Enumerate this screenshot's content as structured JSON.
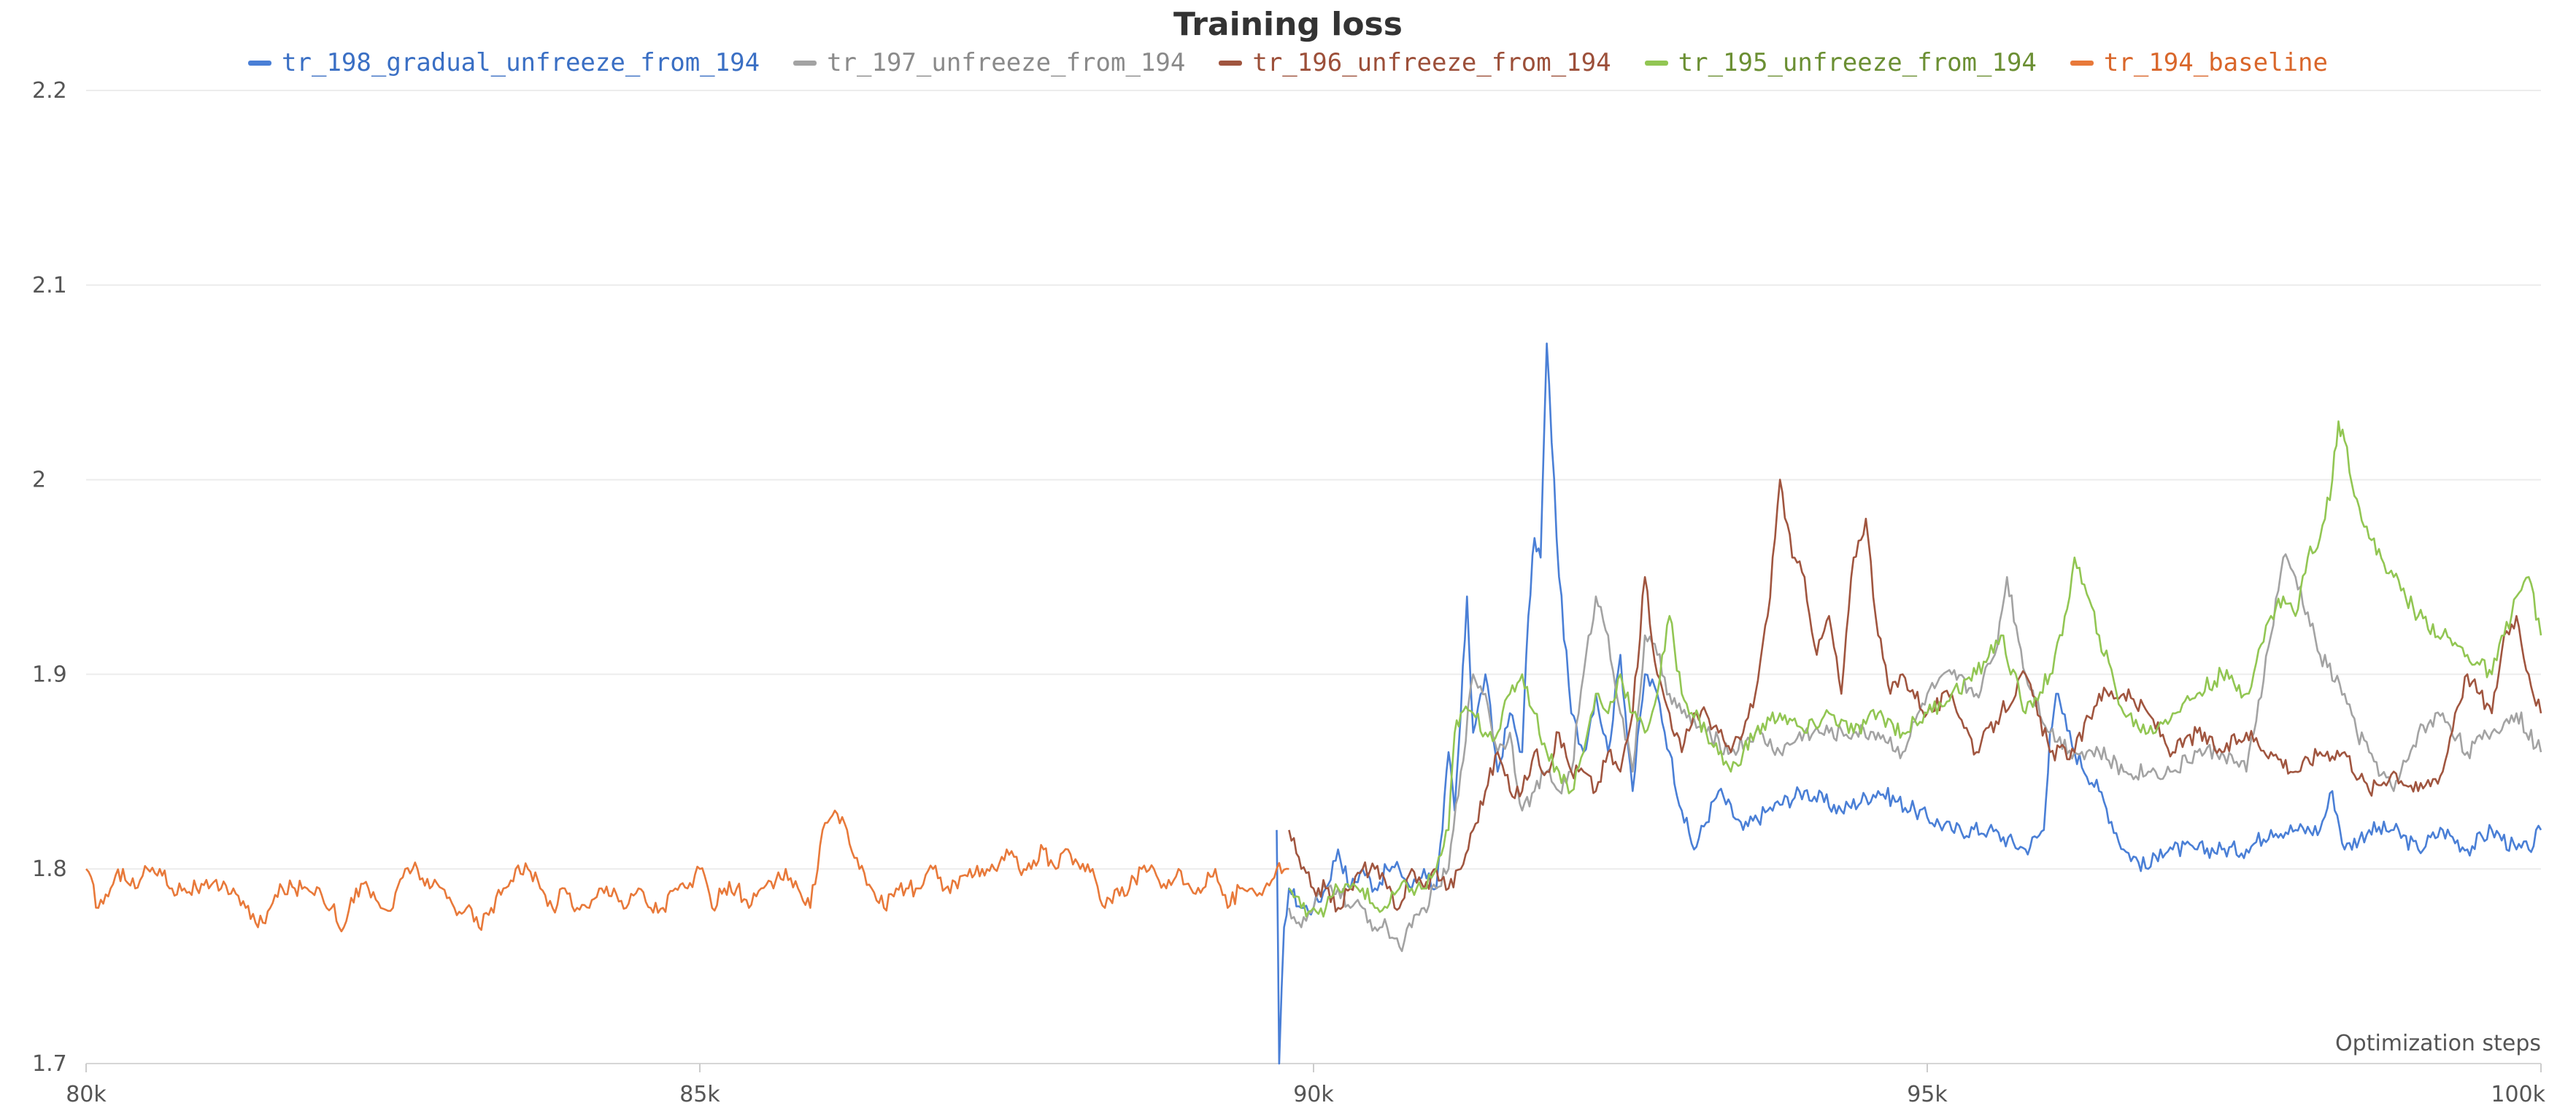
{
  "chart_data": {
    "type": "line",
    "title": "Training loss",
    "xlabel": "Optimization steps",
    "ylabel": "",
    "xlim": [
      80000,
      100000
    ],
    "ylim": [
      1.7,
      2.2
    ],
    "x_ticks": [
      80000,
      85000,
      90000,
      95000,
      100000
    ],
    "x_tick_labels": [
      "80k",
      "85k",
      "90k",
      "95k",
      "100k"
    ],
    "y_ticks": [
      1.7,
      1.8,
      1.9,
      2.0,
      2.1,
      2.2
    ],
    "y_tick_labels": [
      "1.7",
      "1.8",
      "1.9",
      "2",
      "2.1",
      "2.2"
    ],
    "grid": true,
    "legend_position": "top",
    "series": [
      {
        "name": "tr_198_gradual_unfreeze_from_194",
        "color": "#4a7fd6",
        "label_color": "#3a6fc4",
        "x": [
          89700,
          89720,
          89760,
          89800,
          89900,
          90000,
          90100,
          90200,
          90300,
          90400,
          90500,
          90600,
          90700,
          90800,
          90900,
          91000,
          91050,
          91100,
          91150,
          91200,
          91250,
          91300,
          91400,
          91500,
          91600,
          91700,
          91750,
          91800,
          91850,
          91900,
          92000,
          92100,
          92200,
          92300,
          92400,
          92500,
          92600,
          92700,
          92800,
          92900,
          93000,
          93100,
          93300,
          93500,
          93700,
          94000,
          94300,
          94600,
          94900,
          95200,
          95500,
          95800,
          95950,
          96000,
          96050,
          96100,
          96200,
          96400,
          96600,
          96800,
          96900,
          97000,
          97200,
          97400,
          97600,
          97800,
          98000,
          98200,
          98300,
          98400,
          98600,
          98800,
          99000,
          99200,
          99400,
          99600,
          99800,
          99900,
          100000
        ],
        "y": [
          1.82,
          1.7,
          1.77,
          1.79,
          1.78,
          1.78,
          1.79,
          1.81,
          1.79,
          1.8,
          1.79,
          1.8,
          1.8,
          1.79,
          1.8,
          1.79,
          1.82,
          1.86,
          1.83,
          1.88,
          1.94,
          1.87,
          1.9,
          1.85,
          1.88,
          1.86,
          1.93,
          1.97,
          1.96,
          2.07,
          1.95,
          1.88,
          1.86,
          1.89,
          1.86,
          1.91,
          1.84,
          1.9,
          1.89,
          1.86,
          1.83,
          1.81,
          1.84,
          1.82,
          1.83,
          1.84,
          1.83,
          1.84,
          1.83,
          1.82,
          1.82,
          1.81,
          1.82,
          1.87,
          1.89,
          1.88,
          1.86,
          1.84,
          1.81,
          1.8,
          1.81,
          1.81,
          1.81,
          1.81,
          1.81,
          1.82,
          1.82,
          1.82,
          1.84,
          1.81,
          1.82,
          1.82,
          1.81,
          1.82,
          1.81,
          1.82,
          1.81,
          1.81,
          1.82
        ]
      },
      {
        "name": "tr_197_unfreeze_from_194",
        "color": "#a3a3a3",
        "label_color": "#8a8a8a",
        "x": [
          89800,
          89900,
          90000,
          90100,
          90200,
          90300,
          90400,
          90500,
          90600,
          90700,
          90800,
          90900,
          91000,
          91100,
          91200,
          91300,
          91400,
          91500,
          91600,
          91700,
          91800,
          91900,
          92000,
          92100,
          92200,
          92300,
          92400,
          92500,
          92600,
          92700,
          92800,
          92900,
          93000,
          93200,
          93400,
          93600,
          93800,
          94000,
          94200,
          94400,
          94600,
          94800,
          95000,
          95200,
          95400,
          95550,
          95650,
          95800,
          96000,
          96200,
          96400,
          96600,
          96800,
          97000,
          97200,
          97400,
          97600,
          97800,
          97900,
          98000,
          98200,
          98400,
          98500,
          98600,
          98800,
          99000,
          99200,
          99400,
          99600,
          99800,
          100000
        ],
        "y": [
          1.78,
          1.77,
          1.78,
          1.79,
          1.79,
          1.78,
          1.78,
          1.77,
          1.77,
          1.76,
          1.77,
          1.78,
          1.79,
          1.8,
          1.85,
          1.9,
          1.89,
          1.86,
          1.87,
          1.83,
          1.84,
          1.85,
          1.84,
          1.85,
          1.9,
          1.94,
          1.92,
          1.88,
          1.85,
          1.92,
          1.91,
          1.89,
          1.88,
          1.87,
          1.86,
          1.87,
          1.86,
          1.87,
          1.87,
          1.87,
          1.87,
          1.86,
          1.89,
          1.9,
          1.89,
          1.91,
          1.95,
          1.9,
          1.87,
          1.86,
          1.86,
          1.85,
          1.85,
          1.85,
          1.86,
          1.86,
          1.85,
          1.92,
          1.96,
          1.95,
          1.91,
          1.89,
          1.87,
          1.86,
          1.84,
          1.87,
          1.88,
          1.86,
          1.87,
          1.88,
          1.86
        ]
      },
      {
        "name": "tr_196_unfreeze_from_194",
        "color": "#a0553f",
        "label_color": "#9c4f39",
        "x": [
          89800,
          89900,
          90000,
          90100,
          90200,
          90300,
          90400,
          90500,
          90600,
          90700,
          90800,
          90900,
          91000,
          91100,
          91200,
          91300,
          91400,
          91500,
          91600,
          91700,
          91800,
          91900,
          92000,
          92100,
          92200,
          92300,
          92400,
          92500,
          92600,
          92700,
          92800,
          92900,
          93000,
          93100,
          93200,
          93300,
          93400,
          93500,
          93600,
          93700,
          93800,
          93900,
          94000,
          94100,
          94200,
          94300,
          94400,
          94500,
          94600,
          94700,
          94800,
          95000,
          95200,
          95400,
          95600,
          95800,
          96000,
          96200,
          96400,
          96600,
          96800,
          97000,
          97200,
          97400,
          97600,
          97800,
          98000,
          98200,
          98400,
          98600,
          98800,
          99000,
          99200,
          99300,
          99400,
          99500,
          99600,
          99700,
          99800,
          99900,
          100000
        ],
        "y": [
          1.82,
          1.8,
          1.79,
          1.79,
          1.78,
          1.79,
          1.8,
          1.8,
          1.79,
          1.78,
          1.8,
          1.79,
          1.8,
          1.79,
          1.8,
          1.82,
          1.84,
          1.86,
          1.84,
          1.84,
          1.86,
          1.85,
          1.87,
          1.85,
          1.85,
          1.84,
          1.86,
          1.85,
          1.88,
          1.95,
          1.9,
          1.88,
          1.86,
          1.88,
          1.88,
          1.87,
          1.86,
          1.87,
          1.89,
          1.93,
          2.0,
          1.96,
          1.95,
          1.91,
          1.93,
          1.89,
          1.96,
          1.98,
          1.92,
          1.89,
          1.9,
          1.88,
          1.89,
          1.86,
          1.88,
          1.9,
          1.86,
          1.86,
          1.89,
          1.89,
          1.88,
          1.86,
          1.87,
          1.86,
          1.87,
          1.86,
          1.85,
          1.86,
          1.86,
          1.84,
          1.85,
          1.84,
          1.85,
          1.88,
          1.9,
          1.89,
          1.88,
          1.92,
          1.93,
          1.9,
          1.88
        ]
      },
      {
        "name": "tr_195_unfreeze_from_194",
        "color": "#92c653",
        "label_color": "#6b8f33",
        "x": [
          89800,
          89900,
          90000,
          90100,
          90200,
          90300,
          90400,
          90500,
          90600,
          90700,
          90800,
          90900,
          91000,
          91100,
          91150,
          91200,
          91300,
          91400,
          91500,
          91600,
          91700,
          91800,
          91900,
          92000,
          92100,
          92200,
          92300,
          92400,
          92500,
          92600,
          92700,
          92800,
          92900,
          93000,
          93200,
          93400,
          93600,
          93800,
          94000,
          94200,
          94400,
          94600,
          94800,
          95000,
          95200,
          95400,
          95600,
          95800,
          96000,
          96100,
          96200,
          96400,
          96600,
          96800,
          97000,
          97200,
          97400,
          97600,
          97800,
          97900,
          98000,
          98100,
          98200,
          98300,
          98350,
          98400,
          98500,
          98600,
          98800,
          99000,
          99200,
          99400,
          99600,
          99700,
          99800,
          99900,
          100000
        ],
        "y": [
          1.79,
          1.78,
          1.78,
          1.78,
          1.79,
          1.79,
          1.79,
          1.78,
          1.78,
          1.79,
          1.79,
          1.79,
          1.8,
          1.82,
          1.87,
          1.88,
          1.88,
          1.87,
          1.87,
          1.89,
          1.9,
          1.88,
          1.86,
          1.85,
          1.84,
          1.86,
          1.89,
          1.88,
          1.9,
          1.88,
          1.87,
          1.89,
          1.93,
          1.89,
          1.87,
          1.85,
          1.87,
          1.88,
          1.87,
          1.88,
          1.87,
          1.88,
          1.87,
          1.88,
          1.89,
          1.9,
          1.92,
          1.88,
          1.9,
          1.92,
          1.96,
          1.92,
          1.88,
          1.87,
          1.88,
          1.89,
          1.9,
          1.89,
          1.93,
          1.94,
          1.93,
          1.96,
          1.97,
          2.0,
          2.03,
          2.02,
          1.99,
          1.97,
          1.95,
          1.93,
          1.92,
          1.91,
          1.9,
          1.92,
          1.94,
          1.95,
          1.92
        ]
      },
      {
        "name": "tr_194_baseline",
        "color": "#e8793a",
        "label_color": "#d9662a",
        "x": [
          80000,
          80100,
          80200,
          80300,
          80400,
          80500,
          80600,
          80700,
          80800,
          80900,
          81000,
          81100,
          81200,
          81300,
          81400,
          81500,
          81600,
          81700,
          81800,
          81900,
          82000,
          82100,
          82200,
          82300,
          82400,
          82500,
          82600,
          82700,
          82800,
          82900,
          83000,
          83100,
          83200,
          83300,
          83400,
          83500,
          83600,
          83700,
          83800,
          83900,
          84000,
          84100,
          84200,
          84300,
          84400,
          84500,
          84600,
          84700,
          84800,
          84900,
          85000,
          85100,
          85200,
          85300,
          85400,
          85500,
          85600,
          85700,
          85800,
          85900,
          86000,
          86100,
          86200,
          86300,
          86400,
          86500,
          86600,
          86700,
          86800,
          86900,
          87000,
          87100,
          87200,
          87300,
          87400,
          87500,
          87600,
          87700,
          87800,
          87900,
          88000,
          88100,
          88200,
          88300,
          88400,
          88500,
          88600,
          88700,
          88800,
          88900,
          89000,
          89100,
          89200,
          89300,
          89400,
          89500,
          89600,
          89700,
          89800
        ],
        "y": [
          1.8,
          1.78,
          1.79,
          1.8,
          1.79,
          1.8,
          1.8,
          1.79,
          1.79,
          1.79,
          1.79,
          1.79,
          1.79,
          1.78,
          1.77,
          1.78,
          1.79,
          1.79,
          1.79,
          1.79,
          1.78,
          1.77,
          1.79,
          1.79,
          1.78,
          1.78,
          1.8,
          1.8,
          1.79,
          1.79,
          1.78,
          1.78,
          1.77,
          1.78,
          1.79,
          1.8,
          1.8,
          1.79,
          1.78,
          1.79,
          1.78,
          1.78,
          1.79,
          1.79,
          1.78,
          1.79,
          1.78,
          1.78,
          1.79,
          1.79,
          1.8,
          1.78,
          1.79,
          1.79,
          1.78,
          1.79,
          1.79,
          1.8,
          1.79,
          1.78,
          1.82,
          1.83,
          1.82,
          1.8,
          1.79,
          1.78,
          1.79,
          1.79,
          1.79,
          1.8,
          1.79,
          1.79,
          1.8,
          1.8,
          1.8,
          1.81,
          1.8,
          1.8,
          1.81,
          1.8,
          1.81,
          1.8,
          1.8,
          1.78,
          1.79,
          1.79,
          1.8,
          1.8,
          1.79,
          1.8,
          1.79,
          1.79,
          1.8,
          1.78,
          1.79,
          1.79,
          1.79,
          1.8,
          1.8
        ]
      }
    ]
  }
}
